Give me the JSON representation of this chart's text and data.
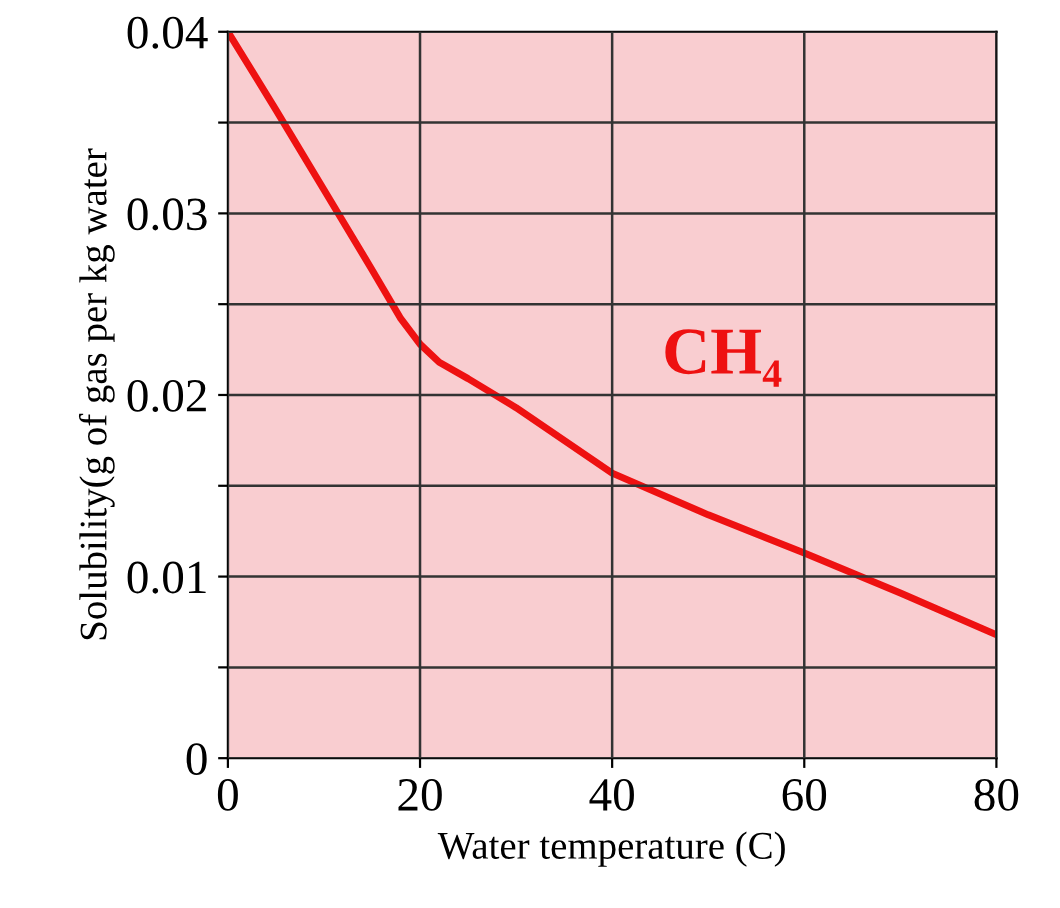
{
  "chart_data": {
    "type": "line",
    "xlabel": "Water temperature (C)",
    "ylabel": "Solubility(g of gas per kg water",
    "x": [
      0,
      5,
      10,
      15,
      18,
      20,
      22,
      25,
      30,
      40,
      50,
      60,
      70,
      80
    ],
    "series": [
      {
        "color": "#ee1111",
        "values": [
          0.04,
          0.0357,
          0.0313,
          0.0269,
          0.0242,
          0.0228,
          0.0218,
          0.0209,
          0.0193,
          0.0157,
          0.0134,
          0.0113,
          0.0091,
          0.0068
        ]
      }
    ],
    "annotations": [
      "CH₄"
    ],
    "xlim": [
      0,
      80
    ],
    "ylim": [
      0,
      0.04
    ],
    "xticks": [
      0,
      20,
      40,
      60,
      80
    ],
    "yticks": [
      0,
      {
        "value": 0.005,
        "label": null
      },
      0.01,
      {
        "value": 0.015,
        "label": null
      },
      0.02,
      {
        "value": 0.025,
        "label": null
      },
      0.03,
      {
        "value": 0.035,
        "label": null
      },
      0.04
    ],
    "grid": true,
    "legend": false,
    "marker": "none",
    "line_style": "solid"
  }
}
